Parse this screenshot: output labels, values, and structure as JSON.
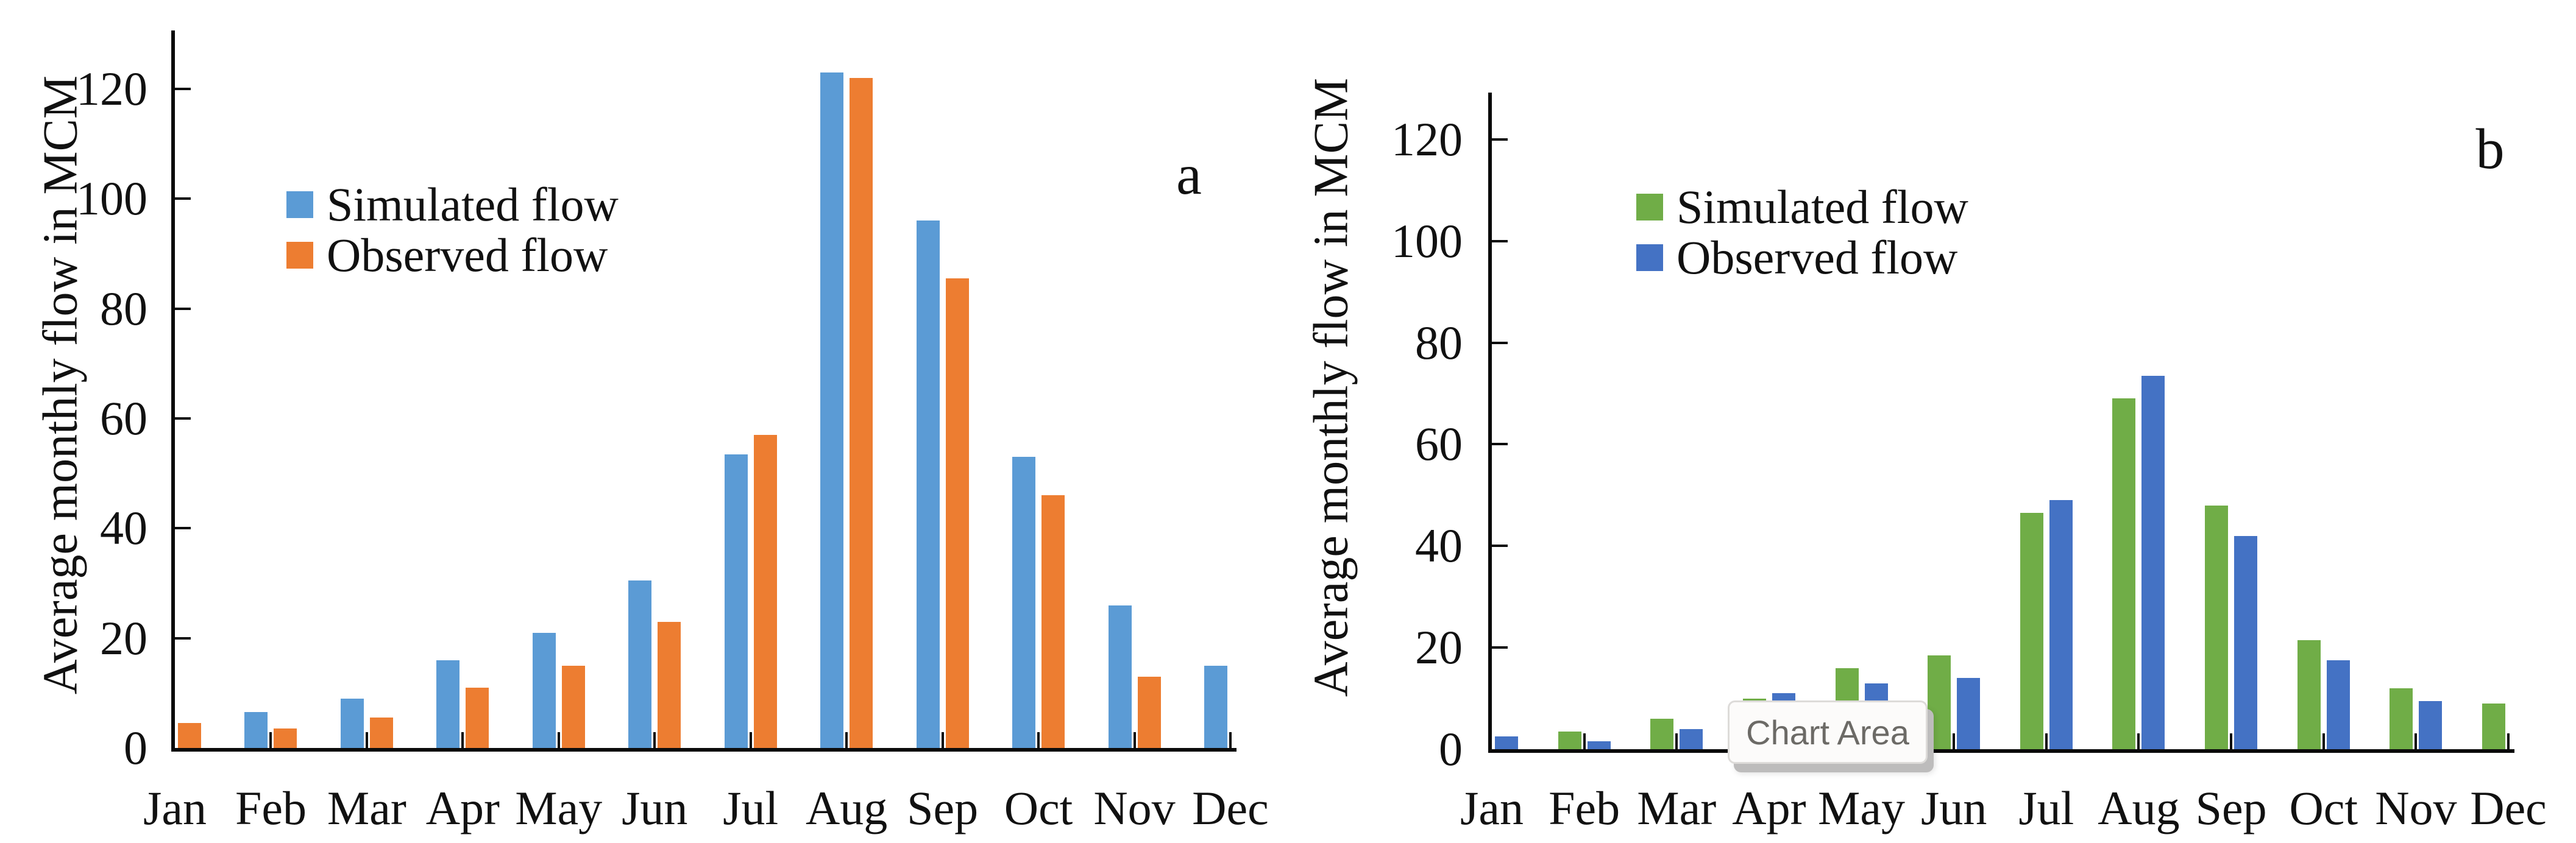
{
  "page": {
    "background": "#ffffff"
  },
  "tooltip": {
    "label": "Chart Area"
  },
  "chart_data": [
    {
      "id": "a",
      "type": "bar",
      "panel_label": "a",
      "ylabel": "Average monthly flow in MCM",
      "categories": [
        "Jan",
        "Feb",
        "Mar",
        "Apr",
        "May",
        "Jun",
        "Jul",
        "Aug",
        "Sep",
        "Oct",
        "Nov",
        "Dec"
      ],
      "y_ticks": [
        0,
        20,
        40,
        60,
        80,
        100,
        120
      ],
      "ylim": [
        0,
        130
      ],
      "grid": false,
      "legend_position": "inside-upper-left",
      "series": [
        {
          "name": "Simulated flow",
          "color": "#5B9BD5",
          "values": [
            0,
            6.5,
            9,
            16,
            21,
            30.5,
            53.5,
            123,
            96,
            53,
            26,
            15
          ]
        },
        {
          "name": "Observed flow",
          "color": "#ED7D31",
          "values": [
            4.5,
            3.5,
            5.5,
            11,
            15,
            23,
            57,
            122,
            85.5,
            46,
            13,
            0
          ]
        }
      ]
    },
    {
      "id": "b",
      "type": "bar",
      "panel_label": "b",
      "ylabel": "Average monthly flow in MCM",
      "categories": [
        "Jan",
        "Feb",
        "Mar",
        "Apr",
        "May",
        "Jun",
        "Jul",
        "Aug",
        "Sep",
        "Oct",
        "Nov",
        "Dec"
      ],
      "y_ticks": [
        0,
        20,
        40,
        60,
        80,
        100,
        120
      ],
      "ylim": [
        0,
        130
      ],
      "grid": false,
      "legend_position": "inside-upper-left",
      "series": [
        {
          "name": "Simulated flow",
          "color": "#70AD47",
          "values": [
            0,
            3.5,
            6,
            10,
            16,
            18.5,
            46.5,
            69,
            48,
            21.5,
            12,
            9
          ]
        },
        {
          "name": "Observed flow",
          "color": "#4472C4",
          "values": [
            2.5,
            1.5,
            4,
            11,
            13,
            14,
            49,
            73.5,
            42,
            17.5,
            9.5,
            0
          ]
        }
      ]
    }
  ]
}
